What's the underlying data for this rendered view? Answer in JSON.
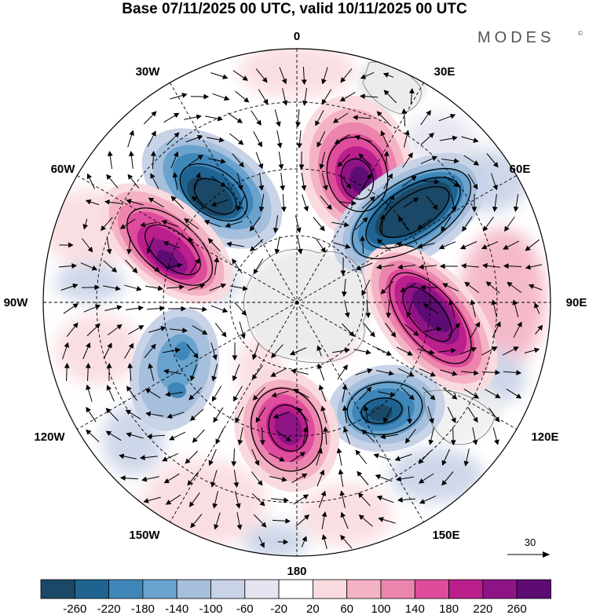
{
  "title": "Base 07/11/2025 00 UTC, valid 10/11/2025 00 UTC",
  "logo": "MODES",
  "logo_mark": "©",
  "longitude_labels": {
    "lon_0": "0",
    "lon_30e": "30E",
    "lon_60e": "60E",
    "lon_90e": "90E",
    "lon_120e": "120E",
    "lon_150e": "150E",
    "lon_180": "180",
    "lon_150w": "150W",
    "lon_120w": "120W",
    "lon_90w": "90W",
    "lon_60w": "60W",
    "lon_30w": "30W"
  },
  "reference_vector": {
    "label": "30"
  },
  "colorbar": {
    "colors": [
      "#1a4866",
      "#1f6391",
      "#3f86b9",
      "#6aa3cd",
      "#a5bfdc",
      "#c9d3e7",
      "#e5e4f0",
      "#ffffff",
      "#f9dbdf",
      "#f4b3c4",
      "#ec85ad",
      "#de4d9c",
      "#bb1f8c",
      "#8e1486",
      "#5d0c74"
    ],
    "labels": [
      "-260",
      "-220",
      "-180",
      "-140",
      "-100",
      "-60",
      "-20",
      "20",
      "60",
      "100",
      "140",
      "180",
      "220",
      "260"
    ]
  },
  "anomaly_centers": [
    {
      "label": "low-northwest",
      "value": -240
    },
    {
      "label": "high-north",
      "value": 250
    },
    {
      "label": "low-northeast",
      "value": -300
    },
    {
      "label": "high-west",
      "value": 250
    },
    {
      "label": "high-east",
      "value": 260
    },
    {
      "label": "low-southeast",
      "value": -230
    },
    {
      "label": "high-south",
      "value": 230
    },
    {
      "label": "low-southwest",
      "value": -140
    }
  ]
}
